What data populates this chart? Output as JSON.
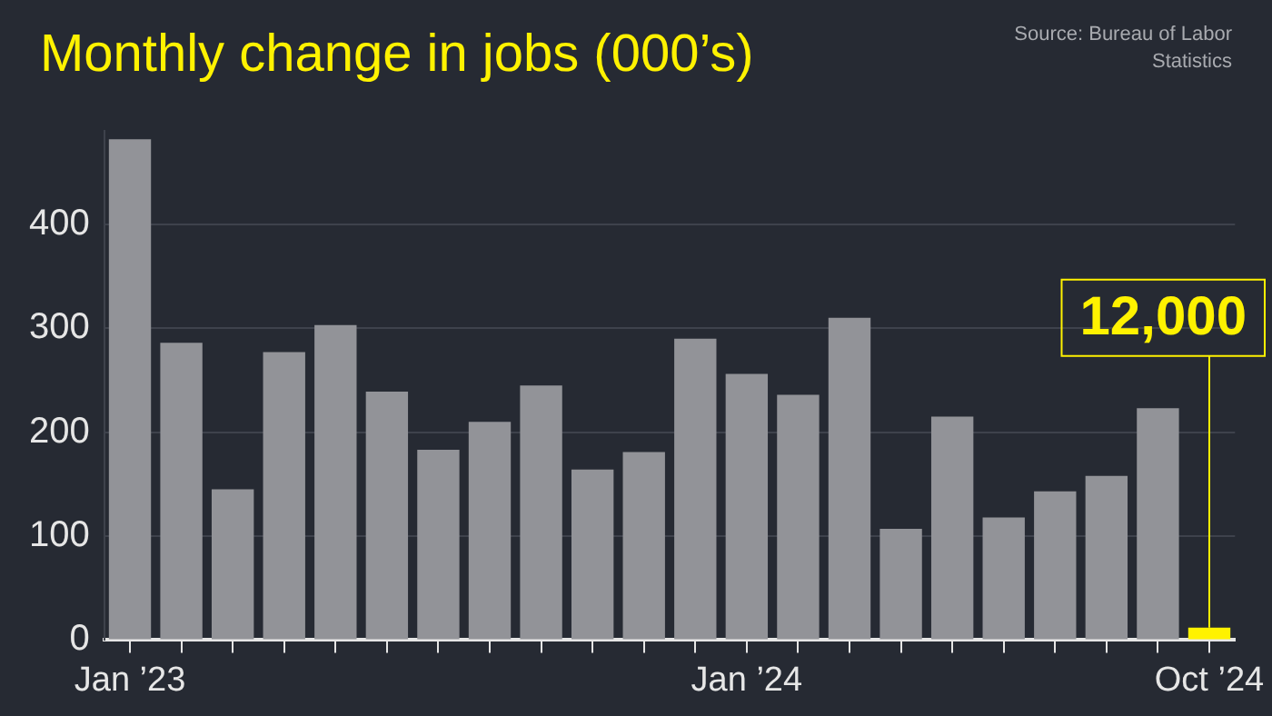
{
  "chart_data": {
    "type": "bar",
    "title": "Monthly change in jobs (000’s)",
    "categories": [
      "Jan ’23",
      null,
      null,
      null,
      null,
      null,
      null,
      null,
      null,
      null,
      null,
      null,
      "Jan ’24",
      null,
      null,
      null,
      null,
      null,
      null,
      null,
      null,
      "Oct ’24"
    ],
    "values": [
      482,
      286,
      145,
      277,
      303,
      239,
      183,
      210,
      245,
      164,
      181,
      290,
      256,
      236,
      310,
      107,
      215,
      118,
      143,
      158,
      223,
      12
    ],
    "colors": [
      "#929398",
      "#929398",
      "#929398",
      "#929398",
      "#929398",
      "#929398",
      "#929398",
      "#929398",
      "#929398",
      "#929398",
      "#929398",
      "#929398",
      "#929398",
      "#929398",
      "#929398",
      "#929398",
      "#929398",
      "#929398",
      "#929398",
      "#929398",
      "#929398",
      "#fff200"
    ],
    "ylim": [
      0,
      490
    ],
    "yticks": [
      0,
      100,
      200,
      300,
      400
    ],
    "grid": "y",
    "legend": false,
    "annotations": [
      {
        "text": "12,000",
        "x": "Oct ’24",
        "y": 12
      },
      "Source: Bureau of Labor Statistics"
    ]
  }
}
